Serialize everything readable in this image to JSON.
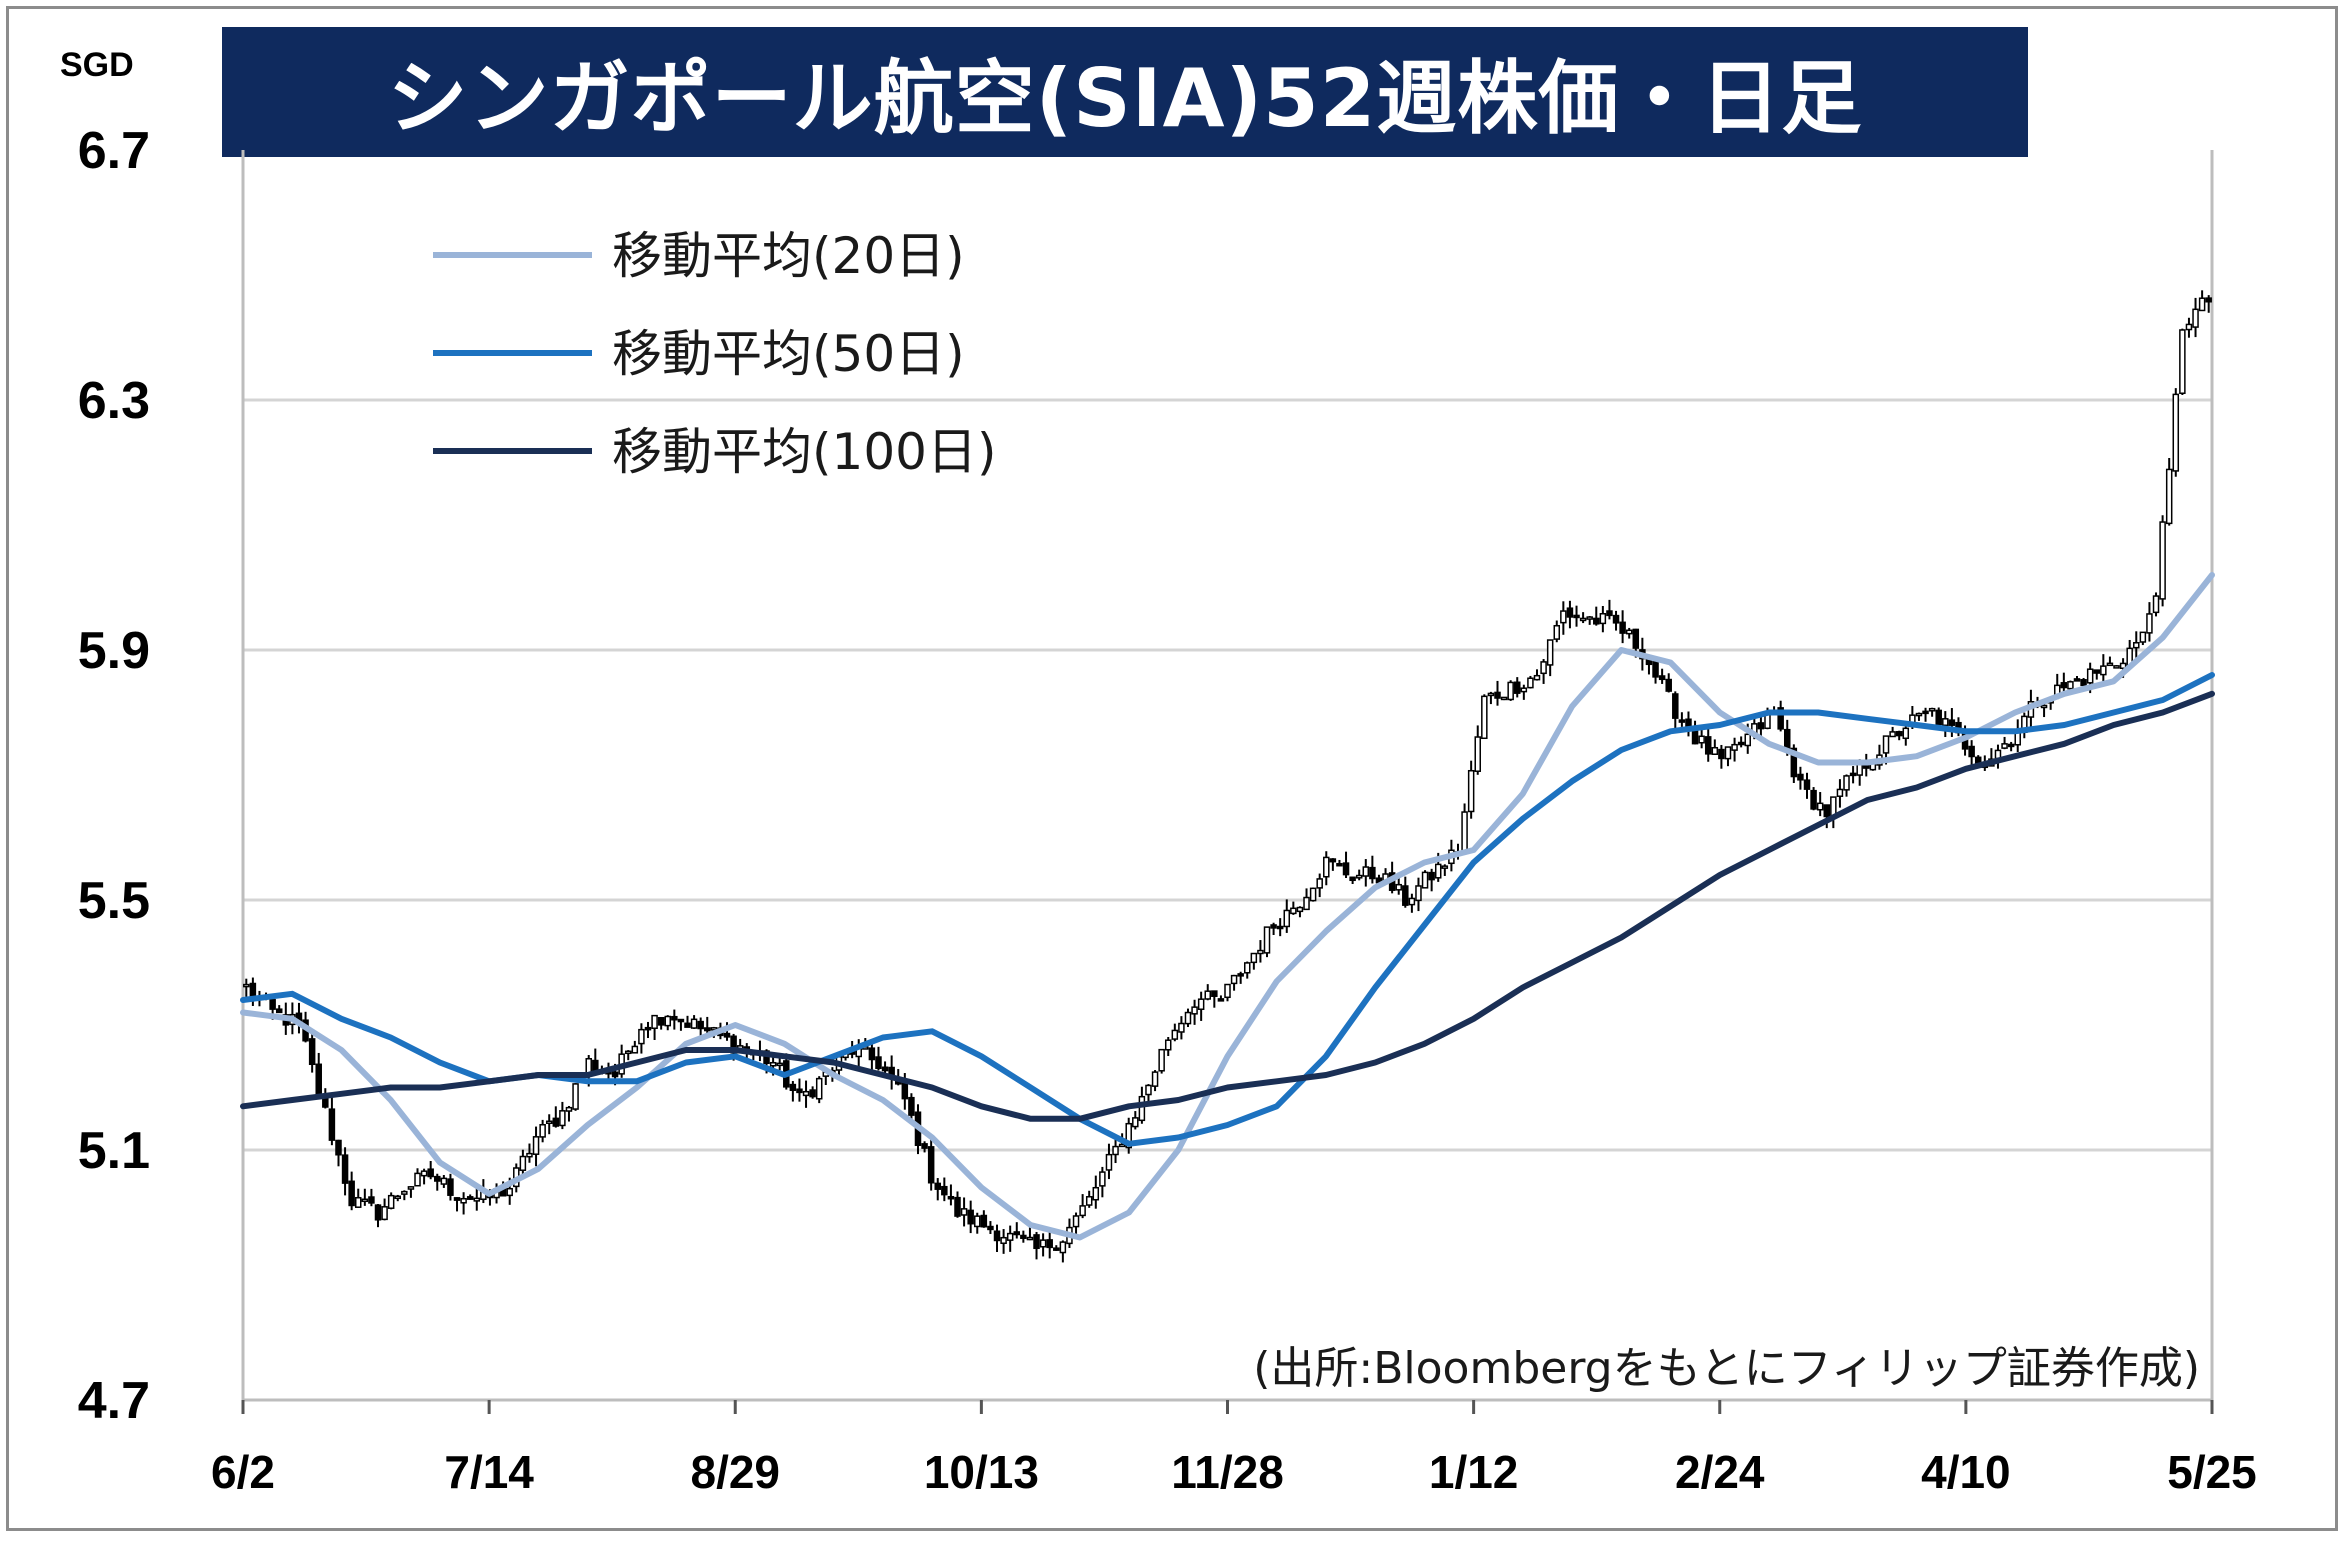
{
  "title": "シンガポール航空(SIA)52週株価・日足",
  "unit": "SGD",
  "source": "(出所:Bloombergをもとにフィリップ証券作成)",
  "chart_data": {
    "type": "candlestick",
    "title": "シンガポール航空(SIA)52週株価・日足",
    "ylabel": "SGD",
    "ylim": [
      4.7,
      6.7
    ],
    "yticks": [
      "6.7",
      "6.3",
      "5.9",
      "5.5",
      "5.1",
      "4.7"
    ],
    "yticks_values": [
      6.7,
      6.3,
      5.9,
      5.5,
      5.1,
      4.7
    ],
    "xticks": [
      "6/2",
      "7/14",
      "8/29",
      "10/13",
      "11/28",
      "1/12",
      "2/24",
      "4/10",
      "5/25"
    ],
    "grid": true,
    "legend_position": "top-left",
    "colors": {
      "up_candle": "#ffffff",
      "down_candle": "#000000",
      "ma20": "#9ab4d8",
      "ma50": "#1d72c0",
      "ma100": "#1a2f55",
      "title_bg": "#0f2a5e",
      "grid": "#d4d4d4"
    },
    "price_path": [
      [
        0,
        5.36
      ],
      [
        4,
        5.32
      ],
      [
        8,
        5.3
      ],
      [
        12,
        5.16
      ],
      [
        16,
        5.02
      ],
      [
        20,
        5.0
      ],
      [
        24,
        5.04
      ],
      [
        28,
        5.06
      ],
      [
        32,
        5.03
      ],
      [
        36,
        5.02
      ],
      [
        40,
        5.04
      ],
      [
        44,
        5.12
      ],
      [
        48,
        5.16
      ],
      [
        52,
        5.24
      ],
      [
        56,
        5.22
      ],
      [
        60,
        5.3
      ],
      [
        64,
        5.32
      ],
      [
        68,
        5.3
      ],
      [
        72,
        5.28
      ],
      [
        76,
        5.26
      ],
      [
        80,
        5.24
      ],
      [
        84,
        5.18
      ],
      [
        88,
        5.22
      ],
      [
        92,
        5.26
      ],
      [
        96,
        5.24
      ],
      [
        100,
        5.18
      ],
      [
        104,
        5.06
      ],
      [
        108,
        5.0
      ],
      [
        112,
        4.98
      ],
      [
        116,
        4.96
      ],
      [
        120,
        4.94
      ],
      [
        124,
        4.96
      ],
      [
        128,
        5.02
      ],
      [
        132,
        5.1
      ],
      [
        136,
        5.18
      ],
      [
        140,
        5.28
      ],
      [
        144,
        5.34
      ],
      [
        148,
        5.34
      ],
      [
        152,
        5.4
      ],
      [
        156,
        5.46
      ],
      [
        160,
        5.5
      ],
      [
        164,
        5.56
      ],
      [
        168,
        5.54
      ],
      [
        172,
        5.54
      ],
      [
        176,
        5.5
      ],
      [
        180,
        5.54
      ],
      [
        184,
        5.58
      ],
      [
        188,
        5.82
      ],
      [
        192,
        5.84
      ],
      [
        196,
        5.86
      ],
      [
        200,
        5.96
      ],
      [
        204,
        5.95
      ],
      [
        208,
        5.94
      ],
      [
        212,
        5.9
      ],
      [
        216,
        5.82
      ],
      [
        220,
        5.76
      ],
      [
        224,
        5.72
      ],
      [
        228,
        5.76
      ],
      [
        232,
        5.8
      ],
      [
        236,
        5.68
      ],
      [
        240,
        5.64
      ],
      [
        244,
        5.7
      ],
      [
        248,
        5.74
      ],
      [
        252,
        5.78
      ],
      [
        256,
        5.8
      ],
      [
        260,
        5.76
      ],
      [
        264,
        5.72
      ],
      [
        268,
        5.76
      ],
      [
        272,
        5.82
      ],
      [
        276,
        5.84
      ],
      [
        280,
        5.86
      ],
      [
        284,
        5.88
      ],
      [
        288,
        5.92
      ],
      [
        290,
        6.0
      ],
      [
        292,
        6.18
      ],
      [
        294,
        6.42
      ],
      [
        296,
        6.44
      ],
      [
        298,
        6.46
      ]
    ],
    "series": [
      {
        "name": "移動平均(20日)",
        "points": [
          [
            0,
            5.32
          ],
          [
            10,
            5.31
          ],
          [
            20,
            5.26
          ],
          [
            30,
            5.18
          ],
          [
            40,
            5.08
          ],
          [
            50,
            5.03
          ],
          [
            60,
            5.07
          ],
          [
            70,
            5.14
          ],
          [
            80,
            5.2
          ],
          [
            90,
            5.27
          ],
          [
            100,
            5.3
          ],
          [
            110,
            5.27
          ],
          [
            120,
            5.22
          ],
          [
            130,
            5.18
          ],
          [
            140,
            5.12
          ],
          [
            150,
            5.04
          ],
          [
            160,
            4.98
          ],
          [
            170,
            4.96
          ],
          [
            180,
            5.0
          ],
          [
            190,
            5.1
          ],
          [
            200,
            5.25
          ],
          [
            210,
            5.37
          ],
          [
            220,
            5.45
          ],
          [
            230,
            5.52
          ],
          [
            240,
            5.56
          ],
          [
            250,
            5.58
          ],
          [
            260,
            5.67
          ],
          [
            270,
            5.81
          ],
          [
            280,
            5.9
          ],
          [
            290,
            5.88
          ],
          [
            300,
            5.8
          ],
          [
            310,
            5.75
          ],
          [
            320,
            5.72
          ],
          [
            330,
            5.72
          ],
          [
            340,
            5.73
          ],
          [
            350,
            5.76
          ],
          [
            360,
            5.8
          ],
          [
            370,
            5.83
          ],
          [
            380,
            5.85
          ],
          [
            390,
            5.92
          ],
          [
            400,
            6.02
          ]
        ]
      },
      {
        "name": "移動平均(50日)",
        "points": [
          [
            0,
            5.34
          ],
          [
            10,
            5.35
          ],
          [
            20,
            5.31
          ],
          [
            30,
            5.28
          ],
          [
            40,
            5.24
          ],
          [
            50,
            5.21
          ],
          [
            60,
            5.22
          ],
          [
            70,
            5.21
          ],
          [
            80,
            5.21
          ],
          [
            90,
            5.24
          ],
          [
            100,
            5.25
          ],
          [
            110,
            5.22
          ],
          [
            120,
            5.25
          ],
          [
            130,
            5.28
          ],
          [
            140,
            5.29
          ],
          [
            150,
            5.25
          ],
          [
            160,
            5.2
          ],
          [
            170,
            5.15
          ],
          [
            180,
            5.11
          ],
          [
            190,
            5.12
          ],
          [
            200,
            5.14
          ],
          [
            210,
            5.17
          ],
          [
            220,
            5.25
          ],
          [
            230,
            5.36
          ],
          [
            240,
            5.46
          ],
          [
            250,
            5.56
          ],
          [
            260,
            5.63
          ],
          [
            270,
            5.69
          ],
          [
            280,
            5.74
          ],
          [
            290,
            5.77
          ],
          [
            300,
            5.78
          ],
          [
            310,
            5.8
          ],
          [
            320,
            5.8
          ],
          [
            330,
            5.79
          ],
          [
            340,
            5.78
          ],
          [
            350,
            5.77
          ],
          [
            360,
            5.77
          ],
          [
            370,
            5.78
          ],
          [
            380,
            5.8
          ],
          [
            390,
            5.82
          ],
          [
            400,
            5.86
          ]
        ]
      },
      {
        "name": "移動平均(100日)",
        "points": [
          [
            0,
            5.17
          ],
          [
            10,
            5.18
          ],
          [
            20,
            5.19
          ],
          [
            30,
            5.2
          ],
          [
            40,
            5.2
          ],
          [
            50,
            5.21
          ],
          [
            60,
            5.22
          ],
          [
            70,
            5.22
          ],
          [
            80,
            5.24
          ],
          [
            90,
            5.26
          ],
          [
            100,
            5.26
          ],
          [
            110,
            5.25
          ],
          [
            120,
            5.24
          ],
          [
            130,
            5.22
          ],
          [
            140,
            5.2
          ],
          [
            150,
            5.17
          ],
          [
            160,
            5.15
          ],
          [
            170,
            5.15
          ],
          [
            180,
            5.17
          ],
          [
            190,
            5.18
          ],
          [
            200,
            5.2
          ],
          [
            210,
            5.21
          ],
          [
            220,
            5.22
          ],
          [
            230,
            5.24
          ],
          [
            240,
            5.27
          ],
          [
            250,
            5.31
          ],
          [
            260,
            5.36
          ],
          [
            270,
            5.4
          ],
          [
            280,
            5.44
          ],
          [
            290,
            5.49
          ],
          [
            300,
            5.54
          ],
          [
            310,
            5.58
          ],
          [
            320,
            5.62
          ],
          [
            330,
            5.66
          ],
          [
            340,
            5.68
          ],
          [
            350,
            5.71
          ],
          [
            360,
            5.73
          ],
          [
            370,
            5.75
          ],
          [
            380,
            5.78
          ],
          [
            390,
            5.8
          ],
          [
            400,
            5.83
          ]
        ]
      }
    ]
  }
}
